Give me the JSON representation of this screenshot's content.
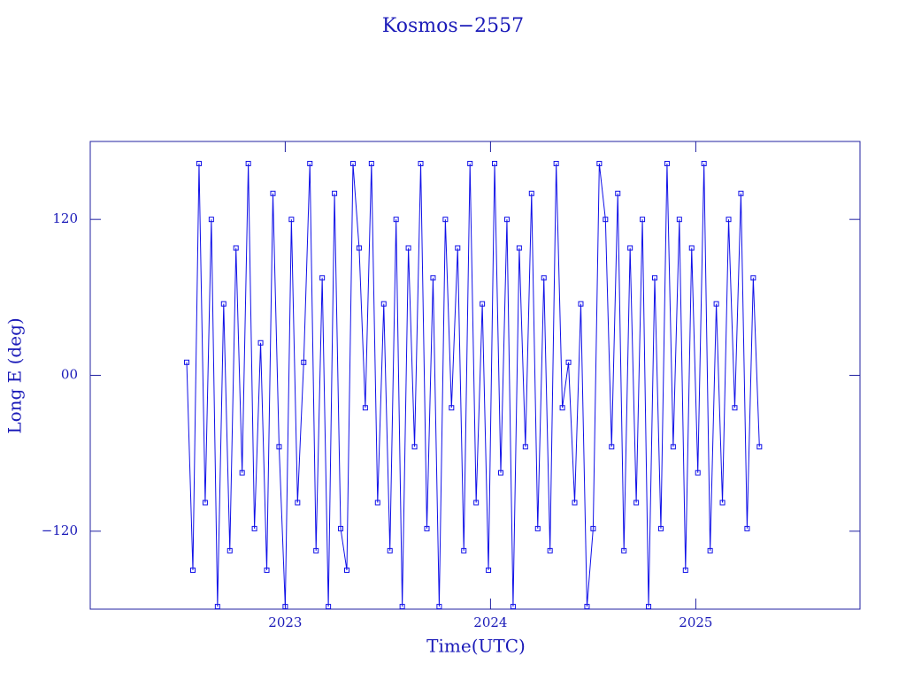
{
  "chart_data": {
    "type": "line",
    "title": "Kosmos−2557",
    "xlabel": "Time(UTC)",
    "ylabel": "Long E (deg)",
    "xlim": [
      2022.05,
      2025.8
    ],
    "xticks": [
      2023,
      2024,
      2025
    ],
    "ylim": [
      -180,
      180
    ],
    "yticks": [
      {
        "value": -120,
        "label": "−120"
      },
      {
        "value": 0,
        "label": "00"
      },
      {
        "value": 120,
        "label": "120"
      }
    ],
    "series": [
      {
        "color": "#1010e8",
        "x": [
          2022.52,
          2022.55,
          2022.58,
          2022.61,
          2022.64,
          2022.67,
          2022.7,
          2022.73,
          2022.76,
          2022.79,
          2022.82,
          2022.85,
          2022.88,
          2022.91,
          2022.94,
          2022.97,
          2023.0,
          2023.03,
          2023.06,
          2023.09,
          2023.12,
          2023.15,
          2023.18,
          2023.21,
          2023.24,
          2023.27,
          2023.3,
          2023.33,
          2023.36,
          2023.39,
          2023.42,
          2023.45,
          2023.48,
          2023.51,
          2023.54,
          2023.57,
          2023.6,
          2023.63,
          2023.66,
          2023.69,
          2023.72,
          2023.75,
          2023.78,
          2023.81,
          2023.84,
          2023.87,
          2023.9,
          2023.93,
          2023.96,
          2023.99,
          2024.02,
          2024.05,
          2024.08,
          2024.11,
          2024.14,
          2024.17,
          2024.2,
          2024.23,
          2024.26,
          2024.29,
          2024.32,
          2024.35,
          2024.38,
          2024.41,
          2024.44,
          2024.47,
          2024.5,
          2024.53,
          2024.56,
          2024.59,
          2024.62,
          2024.65,
          2024.68,
          2024.71,
          2024.74,
          2024.77,
          2024.8,
          2024.83,
          2024.86,
          2024.89,
          2024.92,
          2024.95,
          2024.98,
          2025.01,
          2025.04,
          2025.07,
          2025.1,
          2025.13,
          2025.16,
          2025.19,
          2025.22,
          2025.25,
          2025.28,
          2025.31
        ],
        "values": [
          10,
          -150,
          163,
          -98,
          120,
          -178,
          55,
          -135,
          98,
          -75,
          163,
          -118,
          25,
          -150,
          140,
          -55,
          -178,
          120,
          -98,
          10,
          163,
          -135,
          75,
          -178,
          140,
          -118,
          -150,
          163,
          98,
          -25,
          163,
          -98,
          55,
          -135,
          120,
          -178,
          98,
          -55,
          163,
          -118,
          75,
          -178,
          120,
          -25,
          98,
          -135,
          163,
          -98,
          55,
          -150,
          163,
          -75,
          120,
          -178,
          98,
          -55,
          140,
          -118,
          75,
          -135,
          163,
          -25,
          10,
          -98,
          55,
          -178,
          -118,
          163,
          120,
          -55,
          140,
          -135,
          98,
          -98,
          120,
          -178,
          75,
          -118,
          163,
          -55,
          120,
          -150,
          98,
          -75,
          163,
          -135,
          55,
          -98,
          120,
          -25,
          140,
          -118,
          75,
          -55
        ]
      }
    ]
  }
}
